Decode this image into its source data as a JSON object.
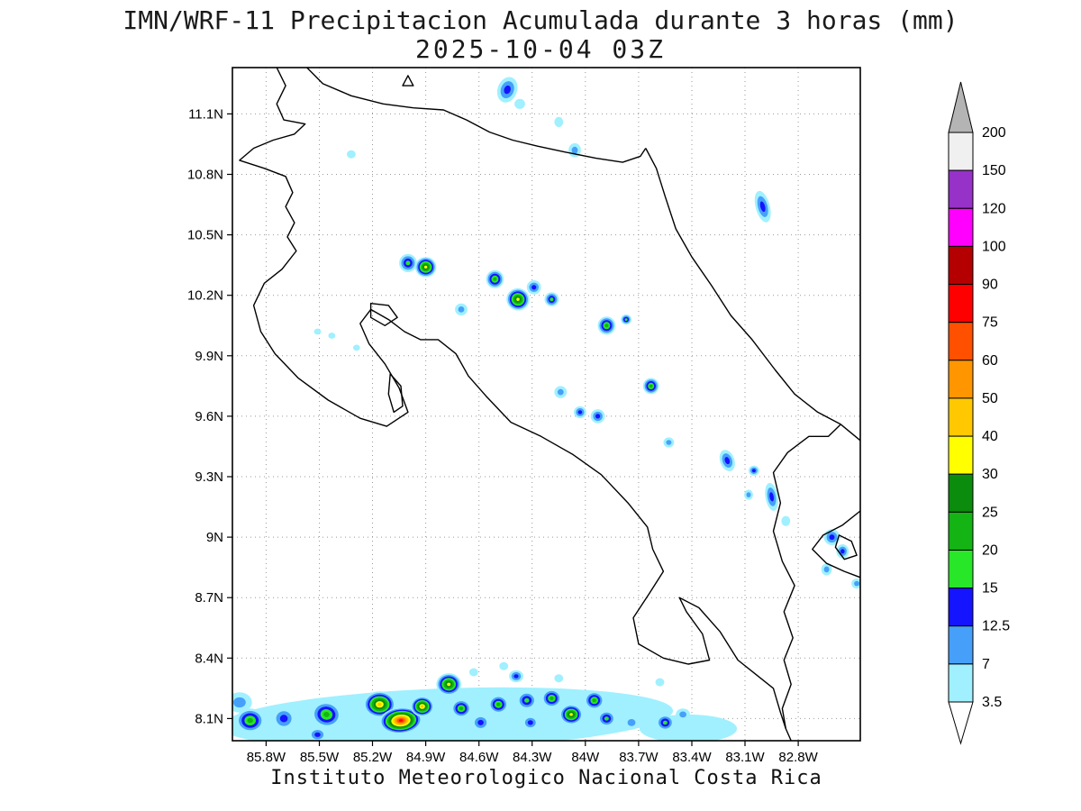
{
  "title": {
    "line1": "IMN/WRF-11 Precipitacion Acumulada durante 3 horas (mm)",
    "line2": "2025-10-04 03Z"
  },
  "footer": "Instituto Meteorologico Nacional Costa Rica",
  "chart_data": {
    "type": "heatmap",
    "title": "IMN/WRF-11 Precipitacion Acumulada durante 3 horas (mm)",
    "subtitle": "2025-10-04 03Z",
    "units": "mm",
    "projection": {
      "lon_min": -85.99,
      "lon_max": -82.45,
      "lat_min": 7.99,
      "lat_max": 11.33
    },
    "x_axis": {
      "ticks": [
        -85.8,
        -85.5,
        -85.2,
        -84.9,
        -84.6,
        -84.3,
        -84.0,
        -83.7,
        -83.4,
        -83.1,
        -82.8
      ],
      "labels": [
        "85.8W",
        "85.5W",
        "85.2W",
        "84.9W",
        "84.6W",
        "84.3W",
        "84W",
        "83.7W",
        "83.4W",
        "83.1W",
        "82.8W"
      ]
    },
    "y_axis": {
      "ticks": [
        8.1,
        8.4,
        8.7,
        9.0,
        9.3,
        9.6,
        9.9,
        10.2,
        10.5,
        10.8,
        11.1
      ],
      "labels": [
        "8.1N",
        "8.4N",
        "8.7N",
        "9N",
        "9.3N",
        "9.6N",
        "9.9N",
        "10.2N",
        "10.5N",
        "10.8N",
        "11.1N"
      ]
    },
    "grid": {
      "show": true,
      "style": "dotted",
      "color": "#999999"
    },
    "colorbar": {
      "levels": [
        3.5,
        7,
        12.5,
        15,
        20,
        25,
        30,
        40,
        50,
        60,
        75,
        90,
        100,
        120,
        150,
        200
      ],
      "level_labels": [
        "3.5",
        "7",
        "12.5",
        "15",
        "20",
        "25",
        "30",
        "40",
        "50",
        "60",
        "75",
        "90",
        "100",
        "120",
        "150",
        "200"
      ],
      "colors": [
        "#a0f0ff",
        "#46a0fa",
        "#1414ff",
        "#28e628",
        "#14b414",
        "#0c8c0c",
        "#ffff00",
        "#ffc800",
        "#ff9600",
        "#ff5000",
        "#ff0000",
        "#b40000",
        "#ff00ff",
        "#9632c8",
        "#f0f0f0"
      ],
      "over_color": "#b4b4b4",
      "under_color": "#ffffff"
    },
    "coastlines": [
      {
        "name": "pacific-coast",
        "closed": false,
        "points": [
          [
            -85.74,
            11.33
          ],
          [
            -85.69,
            11.24
          ],
          [
            -85.74,
            11.15
          ],
          [
            -85.7,
            11.07
          ],
          [
            -85.58,
            11.05
          ],
          [
            -85.64,
            11.0
          ],
          [
            -85.76,
            10.97
          ],
          [
            -85.87,
            10.93
          ],
          [
            -85.95,
            10.87
          ],
          [
            -85.81,
            10.83
          ],
          [
            -85.69,
            10.79
          ],
          [
            -85.65,
            10.71
          ],
          [
            -85.69,
            10.64
          ],
          [
            -85.64,
            10.56
          ],
          [
            -85.68,
            10.49
          ],
          [
            -85.63,
            10.42
          ],
          [
            -85.71,
            10.33
          ],
          [
            -85.81,
            10.26
          ],
          [
            -85.87,
            10.15
          ],
          [
            -85.83,
            10.02
          ],
          [
            -85.75,
            9.91
          ],
          [
            -85.62,
            9.79
          ],
          [
            -85.45,
            9.68
          ],
          [
            -85.27,
            9.59
          ],
          [
            -85.12,
            9.55
          ],
          [
            -85.0,
            9.62
          ],
          [
            -85.05,
            9.74
          ],
          [
            -85.13,
            9.86
          ],
          [
            -85.22,
            9.96
          ],
          [
            -85.27,
            10.06
          ],
          [
            -85.21,
            10.13
          ],
          [
            -85.11,
            10.08
          ],
          [
            -85.02,
            10.02
          ],
          [
            -84.93,
            9.98
          ],
          [
            -84.83,
            9.98
          ],
          [
            -84.73,
            9.91
          ],
          [
            -84.66,
            9.8
          ],
          [
            -84.56,
            9.7
          ],
          [
            -84.42,
            9.57
          ],
          [
            -84.25,
            9.5
          ],
          [
            -84.07,
            9.41
          ],
          [
            -83.91,
            9.31
          ],
          [
            -83.76,
            9.17
          ],
          [
            -83.65,
            9.05
          ],
          [
            -83.62,
            8.94
          ],
          [
            -83.56,
            8.83
          ],
          [
            -83.64,
            8.72
          ],
          [
            -83.73,
            8.6
          ],
          [
            -83.7,
            8.47
          ],
          [
            -83.56,
            8.4
          ],
          [
            -83.42,
            8.37
          ],
          [
            -83.3,
            8.39
          ],
          [
            -83.34,
            8.52
          ],
          [
            -83.43,
            8.63
          ],
          [
            -83.47,
            8.7
          ],
          [
            -83.36,
            8.65
          ],
          [
            -83.24,
            8.53
          ],
          [
            -83.14,
            8.39
          ],
          [
            -83.04,
            8.32
          ],
          [
            -82.94,
            8.25
          ],
          [
            -82.9,
            8.13
          ],
          [
            -82.87,
            8.05
          ],
          [
            -82.84,
            7.99
          ]
        ]
      },
      {
        "name": "caribbean-coast",
        "closed": false,
        "points": [
          [
            -83.66,
            10.93
          ],
          [
            -83.6,
            10.83
          ],
          [
            -83.55,
            10.69
          ],
          [
            -83.49,
            10.53
          ],
          [
            -83.4,
            10.39
          ],
          [
            -83.29,
            10.25
          ],
          [
            -83.18,
            10.1
          ],
          [
            -83.06,
            9.98
          ],
          [
            -82.93,
            9.83
          ],
          [
            -82.82,
            9.71
          ],
          [
            -82.69,
            9.62
          ],
          [
            -82.56,
            9.56
          ],
          [
            -82.45,
            9.48
          ]
        ]
      },
      {
        "name": "lake-nicaragua-san-juan",
        "closed": false,
        "points": [
          [
            -85.57,
            11.33
          ],
          [
            -85.48,
            11.25
          ],
          [
            -85.32,
            11.19
          ],
          [
            -85.14,
            11.15
          ],
          [
            -84.97,
            11.13
          ],
          [
            -84.8,
            11.12
          ],
          [
            -84.67,
            11.07
          ],
          [
            -84.54,
            11.01
          ],
          [
            -84.41,
            10.97
          ],
          [
            -84.27,
            10.94
          ],
          [
            -84.11,
            10.91
          ],
          [
            -83.94,
            10.88
          ],
          [
            -83.79,
            10.86
          ],
          [
            -83.69,
            10.89
          ],
          [
            -83.66,
            10.93
          ]
        ]
      },
      {
        "name": "panama-border",
        "closed": false,
        "points": [
          [
            -82.56,
            9.56
          ],
          [
            -82.63,
            9.5
          ],
          [
            -82.74,
            9.5
          ],
          [
            -82.86,
            9.42
          ],
          [
            -82.94,
            9.32
          ],
          [
            -82.9,
            9.17
          ],
          [
            -82.94,
            9.03
          ],
          [
            -82.89,
            8.88
          ],
          [
            -82.82,
            8.76
          ],
          [
            -82.88,
            8.63
          ],
          [
            -82.83,
            8.5
          ],
          [
            -82.88,
            8.39
          ],
          [
            -82.84,
            8.27
          ],
          [
            -82.89,
            8.15
          ],
          [
            -82.87,
            8.05
          ]
        ]
      },
      {
        "name": "chiriqui-lagoon-coast",
        "closed": false,
        "points": [
          [
            -82.45,
            9.13
          ],
          [
            -82.55,
            9.06
          ],
          [
            -82.66,
            9.01
          ],
          [
            -82.72,
            8.94
          ],
          [
            -82.64,
            8.87
          ],
          [
            -82.54,
            8.83
          ],
          [
            -82.45,
            8.8
          ]
        ]
      },
      {
        "name": "bocas-island",
        "closed": true,
        "points": [
          [
            -82.57,
            9.01
          ],
          [
            -82.5,
            8.98
          ],
          [
            -82.47,
            8.91
          ],
          [
            -82.54,
            8.89
          ],
          [
            -82.59,
            8.95
          ]
        ]
      },
      {
        "name": "isla-chira",
        "closed": true,
        "points": [
          [
            -85.21,
            10.16
          ],
          [
            -85.11,
            10.15
          ],
          [
            -85.06,
            10.09
          ],
          [
            -85.13,
            10.05
          ],
          [
            -85.21,
            10.09
          ]
        ]
      },
      {
        "name": "gulf-of-nicoya-island",
        "closed": true,
        "points": [
          [
            -85.1,
            9.81
          ],
          [
            -85.04,
            9.75
          ],
          [
            -85.03,
            9.65
          ],
          [
            -85.08,
            9.62
          ],
          [
            -85.11,
            9.71
          ]
        ]
      },
      {
        "name": "lake-island",
        "closed": true,
        "points": [
          [
            -85.03,
            11.24
          ],
          [
            -84.97,
            11.24
          ],
          [
            -85.0,
            11.29
          ]
        ]
      }
    ],
    "cells": [
      {
        "x": -84.78,
        "y": 8.1,
        "w": 2.55,
        "h": 0.3,
        "r": -2,
        "l": 0
      },
      {
        "x": -83.42,
        "y": 8.05,
        "w": 0.55,
        "h": 0.14,
        "r": 0,
        "l": 0
      },
      {
        "x": -85.95,
        "y": 8.18,
        "w": 0.14,
        "h": 0.1,
        "r": 0,
        "l": 1
      },
      {
        "x": -85.89,
        "y": 8.09,
        "w": 0.16,
        "h": 0.12,
        "r": 0,
        "l": 4
      },
      {
        "x": -85.7,
        "y": 8.1,
        "w": 0.13,
        "h": 0.11,
        "r": 0,
        "l": 2
      },
      {
        "x": -85.46,
        "y": 8.12,
        "w": 0.17,
        "h": 0.13,
        "r": 10,
        "l": 4
      },
      {
        "x": -85.51,
        "y": 8.02,
        "w": 0.1,
        "h": 0.07,
        "r": 0,
        "l": 2
      },
      {
        "x": -85.16,
        "y": 8.17,
        "w": 0.18,
        "h": 0.13,
        "r": 0,
        "l": 7
      },
      {
        "x": -85.04,
        "y": 8.09,
        "w": 0.24,
        "h": 0.13,
        "r": -5,
        "l": 10
      },
      {
        "x": -84.92,
        "y": 8.16,
        "w": 0.13,
        "h": 0.1,
        "r": 0,
        "l": 7
      },
      {
        "x": -84.77,
        "y": 8.27,
        "w": 0.14,
        "h": 0.11,
        "r": 0,
        "l": 6
      },
      {
        "x": -84.7,
        "y": 8.15,
        "w": 0.11,
        "h": 0.09,
        "r": 0,
        "l": 4
      },
      {
        "x": -84.59,
        "y": 8.08,
        "w": 0.1,
        "h": 0.08,
        "r": 0,
        "l": 2
      },
      {
        "x": -84.49,
        "y": 8.17,
        "w": 0.11,
        "h": 0.09,
        "r": 0,
        "l": 4
      },
      {
        "x": -84.39,
        "y": 8.31,
        "w": 0.08,
        "h": 0.06,
        "r": 0,
        "l": 2
      },
      {
        "x": -84.33,
        "y": 8.19,
        "w": 0.11,
        "h": 0.09,
        "r": 0,
        "l": 3
      },
      {
        "x": -84.31,
        "y": 8.08,
        "w": 0.09,
        "h": 0.07,
        "r": 0,
        "l": 2
      },
      {
        "x": -84.19,
        "y": 8.2,
        "w": 0.11,
        "h": 0.09,
        "r": 0,
        "l": 4
      },
      {
        "x": -84.08,
        "y": 8.12,
        "w": 0.13,
        "h": 0.1,
        "r": 0,
        "l": 6
      },
      {
        "x": -83.95,
        "y": 8.19,
        "w": 0.11,
        "h": 0.09,
        "r": 0,
        "l": 4
      },
      {
        "x": -83.88,
        "y": 8.1,
        "w": 0.1,
        "h": 0.08,
        "r": 0,
        "l": 3
      },
      {
        "x": -83.74,
        "y": 8.08,
        "w": 0.09,
        "h": 0.07,
        "r": 0,
        "l": 1
      },
      {
        "x": -83.55,
        "y": 8.08,
        "w": 0.1,
        "h": 0.08,
        "r": 0,
        "l": 3
      },
      {
        "x": -83.45,
        "y": 8.12,
        "w": 0.08,
        "h": 0.06,
        "r": 0,
        "l": 1
      },
      {
        "x": -84.46,
        "y": 8.36,
        "w": 0.05,
        "h": 0.04,
        "r": 0,
        "l": 0
      },
      {
        "x": -84.63,
        "y": 8.33,
        "w": 0.05,
        "h": 0.04,
        "r": 0,
        "l": 0
      },
      {
        "x": -84.15,
        "y": 8.3,
        "w": 0.05,
        "h": 0.04,
        "r": 0,
        "l": 0
      },
      {
        "x": -83.58,
        "y": 8.28,
        "w": 0.05,
        "h": 0.04,
        "r": 0,
        "l": 0
      },
      {
        "x": -84.44,
        "y": 11.22,
        "w": 0.11,
        "h": 0.13,
        "r": 20,
        "l": 2
      },
      {
        "x": -84.37,
        "y": 11.15,
        "w": 0.06,
        "h": 0.05,
        "r": 0,
        "l": 0
      },
      {
        "x": -84.15,
        "y": 11.06,
        "w": 0.05,
        "h": 0.05,
        "r": 0,
        "l": 0
      },
      {
        "x": -84.06,
        "y": 10.92,
        "w": 0.07,
        "h": 0.07,
        "r": 0,
        "l": 1
      },
      {
        "x": -85.32,
        "y": 10.9,
        "w": 0.05,
        "h": 0.04,
        "r": 0,
        "l": 0
      },
      {
        "x": -83.0,
        "y": 10.64,
        "w": 0.08,
        "h": 0.16,
        "r": -15,
        "l": 2
      },
      {
        "x": -85.0,
        "y": 10.36,
        "w": 0.1,
        "h": 0.09,
        "r": 0,
        "l": 3
      },
      {
        "x": -84.9,
        "y": 10.34,
        "w": 0.12,
        "h": 0.1,
        "r": 0,
        "l": 6
      },
      {
        "x": -84.7,
        "y": 10.13,
        "w": 0.07,
        "h": 0.06,
        "r": 0,
        "l": 1
      },
      {
        "x": -84.51,
        "y": 10.28,
        "w": 0.1,
        "h": 0.09,
        "r": 0,
        "l": 4
      },
      {
        "x": -84.38,
        "y": 10.18,
        "w": 0.13,
        "h": 0.11,
        "r": 15,
        "l": 6
      },
      {
        "x": -84.29,
        "y": 10.24,
        "w": 0.08,
        "h": 0.07,
        "r": 0,
        "l": 2
      },
      {
        "x": -84.19,
        "y": 10.18,
        "w": 0.08,
        "h": 0.07,
        "r": 0,
        "l": 3
      },
      {
        "x": -83.88,
        "y": 10.05,
        "w": 0.1,
        "h": 0.09,
        "r": 0,
        "l": 4
      },
      {
        "x": -83.77,
        "y": 10.08,
        "w": 0.06,
        "h": 0.05,
        "r": 0,
        "l": 3
      },
      {
        "x": -85.51,
        "y": 10.02,
        "w": 0.04,
        "h": 0.03,
        "r": 0,
        "l": 0
      },
      {
        "x": -85.43,
        "y": 10.0,
        "w": 0.04,
        "h": 0.03,
        "r": 0,
        "l": 0
      },
      {
        "x": -85.29,
        "y": 9.94,
        "w": 0.04,
        "h": 0.03,
        "r": 0,
        "l": 0
      },
      {
        "x": -84.14,
        "y": 9.72,
        "w": 0.07,
        "h": 0.06,
        "r": 0,
        "l": 1
      },
      {
        "x": -84.03,
        "y": 9.62,
        "w": 0.07,
        "h": 0.06,
        "r": 0,
        "l": 2
      },
      {
        "x": -83.93,
        "y": 9.6,
        "w": 0.08,
        "h": 0.07,
        "r": 0,
        "l": 2
      },
      {
        "x": -83.63,
        "y": 9.75,
        "w": 0.09,
        "h": 0.08,
        "r": 0,
        "l": 4
      },
      {
        "x": -83.53,
        "y": 9.47,
        "w": 0.06,
        "h": 0.05,
        "r": 0,
        "l": 1
      },
      {
        "x": -83.2,
        "y": 9.38,
        "w": 0.08,
        "h": 0.11,
        "r": -20,
        "l": 2
      },
      {
        "x": -83.05,
        "y": 9.33,
        "w": 0.06,
        "h": 0.05,
        "r": 0,
        "l": 2
      },
      {
        "x": -83.08,
        "y": 9.21,
        "w": 0.05,
        "h": 0.05,
        "r": 0,
        "l": 1
      },
      {
        "x": -82.95,
        "y": 9.2,
        "w": 0.07,
        "h": 0.14,
        "r": -10,
        "l": 2
      },
      {
        "x": -82.87,
        "y": 9.08,
        "w": 0.05,
        "h": 0.05,
        "r": 0,
        "l": 0
      },
      {
        "x": -82.61,
        "y": 9.0,
        "w": 0.09,
        "h": 0.08,
        "r": 0,
        "l": 2
      },
      {
        "x": -82.55,
        "y": 8.93,
        "w": 0.07,
        "h": 0.07,
        "r": 0,
        "l": 2
      },
      {
        "x": -82.64,
        "y": 8.84,
        "w": 0.06,
        "h": 0.06,
        "r": 0,
        "l": 1
      },
      {
        "x": -82.47,
        "y": 8.77,
        "w": 0.06,
        "h": 0.05,
        "r": 0,
        "l": 1
      }
    ]
  }
}
